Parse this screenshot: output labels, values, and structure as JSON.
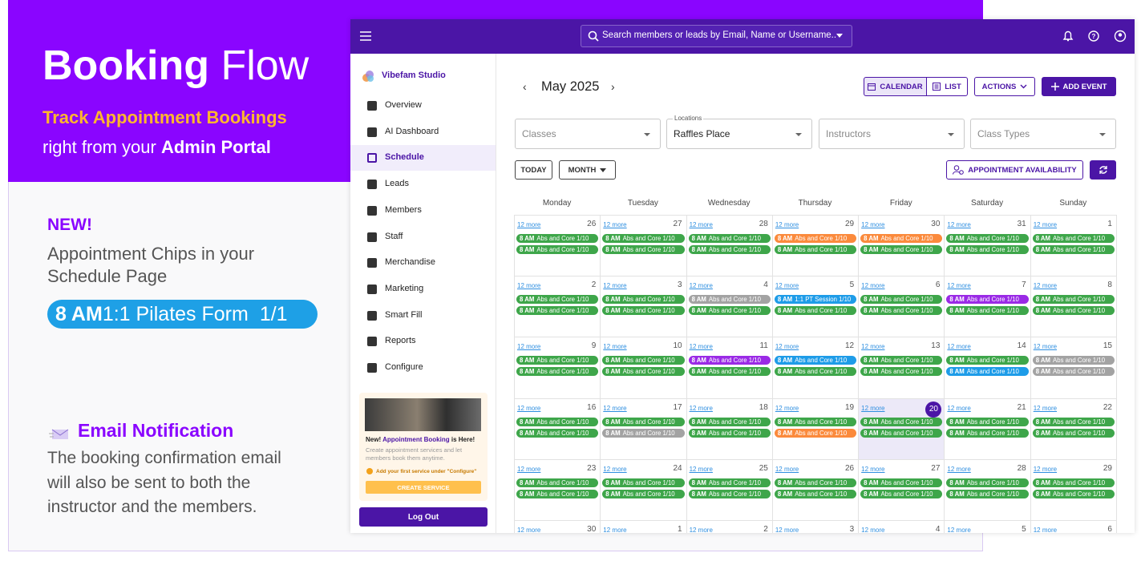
{
  "promo": {
    "title_bold": "Booking",
    "title_rest": "Flow",
    "highlight": "Track Appointment Bookings",
    "line2_pre": "right from your",
    "line2_bold": "Admin Portal",
    "new_badge": "NEW!",
    "new_text": "Appointment Chips in your Schedule Page",
    "sample_chip": {
      "time": "8 AM",
      "label": "1:1 Pilates Form",
      "count": "1/1"
    },
    "email_title": "Email Notification",
    "email_text": "The booking confirmation email will also be sent to both the instructor and the members."
  },
  "app": {
    "search_placeholder": "Search members or leads by Email, Name or Username..",
    "studio": "Vibefam Studio",
    "nav": [
      "Overview",
      "AI Dashboard",
      "Schedule",
      "Leads",
      "Members",
      "Staff",
      "Merchandise",
      "Marketing",
      "Smart Fill",
      "Reports",
      "Configure"
    ],
    "active_nav": 2,
    "card": {
      "heading_pre": "New!",
      "heading_link": "Appointment Booking",
      "heading_post": "is Here!",
      "text": "Create appointment services and let members book them anytime.",
      "hint": "Add your first service under \"Configure\"",
      "button": "CREATE SERVICE"
    },
    "logout": "Log Out"
  },
  "schedule": {
    "month": "May 2025",
    "views": [
      "CALENDAR",
      "LIST"
    ],
    "active_view": 0,
    "actions": "ACTIONS",
    "add_event": "ADD EVENT",
    "filters": [
      {
        "placeholder": "Classes"
      },
      {
        "label": "Locations",
        "value": "Raffles Place"
      },
      {
        "placeholder": "Instructors"
      },
      {
        "placeholder": "Class Types"
      }
    ],
    "today": "TODAY",
    "view": "MONTH",
    "availability": "APPOINTMENT AVAILABILITY",
    "weekdays": [
      "Monday",
      "Tuesday",
      "Wednesday",
      "Thursday",
      "Friday",
      "Saturday",
      "Sunday"
    ],
    "weeks": [
      [
        {
          "date": 26,
          "more": "12 more",
          "chips": [
            {
              "time": "8 AM",
              "label": "Abs and Core 1/10",
              "color": "green"
            },
            {
              "time": "8 AM",
              "label": "Abs and Core 1/10",
              "color": "green"
            }
          ]
        },
        {
          "date": 27,
          "more": "12 more",
          "chips": [
            {
              "time": "8 AM",
              "label": "Abs and Core 1/10",
              "color": "green"
            },
            {
              "time": "8 AM",
              "label": "Abs and Core 1/10",
              "color": "green"
            }
          ]
        },
        {
          "date": 28,
          "more": "12 more",
          "chips": [
            {
              "time": "8 AM",
              "label": "Abs and Core 1/10",
              "color": "green"
            },
            {
              "time": "8 AM",
              "label": "Abs and Core 1/10",
              "color": "green"
            }
          ]
        },
        {
          "date": 29,
          "more": "12 more",
          "chips": [
            {
              "time": "8 AM",
              "label": "Abs and Core 1/10",
              "color": "orange"
            },
            {
              "time": "8 AM",
              "label": "Abs and Core 1/10",
              "color": "green"
            }
          ]
        },
        {
          "date": 30,
          "more": "12 more",
          "chips": [
            {
              "time": "8 AM",
              "label": "Abs and Core 1/10",
              "color": "orange"
            },
            {
              "time": "8 AM",
              "label": "Abs and Core 1/10",
              "color": "green"
            }
          ]
        },
        {
          "date": 31,
          "more": "12 more",
          "chips": [
            {
              "time": "8 AM",
              "label": "Abs and Core 1/10",
              "color": "green"
            },
            {
              "time": "8 AM",
              "label": "Abs and Core 1/10",
              "color": "green"
            }
          ]
        },
        {
          "date": 1,
          "more": "12 more",
          "chips": [
            {
              "time": "8 AM",
              "label": "Abs and Core 1/10",
              "color": "green"
            },
            {
              "time": "8 AM",
              "label": "Abs and Core 1/10",
              "color": "green"
            }
          ]
        }
      ],
      [
        {
          "date": 2,
          "more": "12 more",
          "chips": [
            {
              "time": "8 AM",
              "label": "Abs and Core 1/10",
              "color": "green"
            },
            {
              "time": "8 AM",
              "label": "Abs and Core 1/10",
              "color": "green"
            }
          ]
        },
        {
          "date": 3,
          "more": "12 more",
          "chips": [
            {
              "time": "8 AM",
              "label": "Abs and Core 1/10",
              "color": "green"
            },
            {
              "time": "8 AM",
              "label": "Abs and Core 1/10",
              "color": "green"
            }
          ]
        },
        {
          "date": 4,
          "more": "12 more",
          "chips": [
            {
              "time": "8 AM",
              "label": "Abs and Core 1/10",
              "color": "grey"
            },
            {
              "time": "8 AM",
              "label": "Abs and Core 1/10",
              "color": "green"
            }
          ]
        },
        {
          "date": 5,
          "more": "12 more",
          "chips": [
            {
              "time": "8 AM",
              "label": "1:1 PT Session 1/10",
              "color": "blue"
            },
            {
              "time": "8 AM",
              "label": "Abs and Core 1/10",
              "color": "green"
            }
          ]
        },
        {
          "date": 6,
          "more": "12 more",
          "chips": [
            {
              "time": "8 AM",
              "label": "Abs and Core 1/10",
              "color": "green"
            },
            {
              "time": "8 AM",
              "label": "Abs and Core 1/10",
              "color": "green"
            }
          ]
        },
        {
          "date": 7,
          "more": "12 more",
          "chips": [
            {
              "time": "8 AM",
              "label": "Abs and Core 1/10",
              "color": "purple"
            },
            {
              "time": "8 AM",
              "label": "Abs and Core 1/10",
              "color": "green"
            }
          ]
        },
        {
          "date": 8,
          "more": "12 more",
          "chips": [
            {
              "time": "8 AM",
              "label": "Abs and Core 1/10",
              "color": "green"
            },
            {
              "time": "8 AM",
              "label": "Abs and Core 1/10",
              "color": "green"
            }
          ]
        }
      ],
      [
        {
          "date": 9,
          "more": "12 more",
          "chips": [
            {
              "time": "8 AM",
              "label": "Abs and Core 1/10",
              "color": "green"
            },
            {
              "time": "8 AM",
              "label": "Abs and Core 1/10",
              "color": "green"
            }
          ]
        },
        {
          "date": 10,
          "more": "12 more",
          "chips": [
            {
              "time": "8 AM",
              "label": "Abs and Core 1/10",
              "color": "green"
            },
            {
              "time": "8 AM",
              "label": "Abs and Core 1/10",
              "color": "green"
            }
          ]
        },
        {
          "date": 11,
          "more": "12 more",
          "chips": [
            {
              "time": "8 AM",
              "label": "Abs and Core 1/10",
              "color": "purple"
            },
            {
              "time": "8 AM",
              "label": "Abs and Core 1/10",
              "color": "green"
            }
          ]
        },
        {
          "date": 12,
          "more": "12 more",
          "chips": [
            {
              "time": "8 AM",
              "label": "Abs and Core 1/10",
              "color": "blue"
            },
            {
              "time": "8 AM",
              "label": "Abs and Core 1/10",
              "color": "green"
            }
          ]
        },
        {
          "date": 13,
          "more": "12 more",
          "chips": [
            {
              "time": "8 AM",
              "label": "Abs and Core 1/10",
              "color": "green"
            },
            {
              "time": "8 AM",
              "label": "Abs and Core 1/10",
              "color": "green"
            }
          ]
        },
        {
          "date": 14,
          "more": "12 more",
          "chips": [
            {
              "time": "8 AM",
              "label": "Abs and Core 1/10",
              "color": "green"
            },
            {
              "time": "8 AM",
              "label": "Abs and Core 1/10",
              "color": "blue"
            }
          ]
        },
        {
          "date": 15,
          "more": "12 more",
          "chips": [
            {
              "time": "8 AM",
              "label": "Abs and Core 1/10",
              "color": "grey"
            },
            {
              "time": "8 AM",
              "label": "Abs and Core 1/10",
              "color": "grey"
            }
          ]
        }
      ],
      [
        {
          "date": 16,
          "more": "12 more",
          "chips": [
            {
              "time": "8 AM",
              "label": "Abs and Core 1/10",
              "color": "green"
            },
            {
              "time": "8 AM",
              "label": "Abs and Core 1/10",
              "color": "green"
            }
          ]
        },
        {
          "date": 17,
          "more": "12 more",
          "chips": [
            {
              "time": "8 AM",
              "label": "Abs and Core 1/10",
              "color": "green"
            },
            {
              "time": "8 AM",
              "label": "Abs and Core 1/10",
              "color": "grey"
            }
          ]
        },
        {
          "date": 18,
          "more": "12 more",
          "chips": [
            {
              "time": "8 AM",
              "label": "Abs and Core 1/10",
              "color": "green"
            },
            {
              "time": "8 AM",
              "label": "Abs and Core 1/10",
              "color": "green"
            }
          ]
        },
        {
          "date": 19,
          "more": "12 more",
          "chips": [
            {
              "time": "8 AM",
              "label": "Abs and Core 1/10",
              "color": "green"
            },
            {
              "time": "8 AM",
              "label": "Abs and Core 1/10",
              "color": "orange"
            }
          ]
        },
        {
          "date": 20,
          "more": "12 more",
          "today": true,
          "chips": [
            {
              "time": "8 AM",
              "label": "Abs and Core 1/10",
              "color": "green"
            },
            {
              "time": "8 AM",
              "label": "Abs and Core 1/10",
              "color": "green"
            }
          ]
        },
        {
          "date": 21,
          "more": "12 more",
          "chips": [
            {
              "time": "8 AM",
              "label": "Abs and Core 1/10",
              "color": "green"
            },
            {
              "time": "8 AM",
              "label": "Abs and Core 1/10",
              "color": "green"
            }
          ]
        },
        {
          "date": 22,
          "more": "12 more",
          "chips": [
            {
              "time": "8 AM",
              "label": "Abs and Core 1/10",
              "color": "green"
            },
            {
              "time": "8 AM",
              "label": "Abs and Core 1/10",
              "color": "green"
            }
          ]
        }
      ],
      [
        {
          "date": 23,
          "more": "12 more",
          "chips": [
            {
              "time": "8 AM",
              "label": "Abs and Core 1/10",
              "color": "green"
            },
            {
              "time": "8 AM",
              "label": "Abs and Core 1/10",
              "color": "green"
            }
          ]
        },
        {
          "date": 24,
          "more": "12 more",
          "chips": [
            {
              "time": "8 AM",
              "label": "Abs and Core 1/10",
              "color": "green"
            },
            {
              "time": "8 AM",
              "label": "Abs and Core 1/10",
              "color": "green"
            }
          ]
        },
        {
          "date": 25,
          "more": "12 more",
          "chips": [
            {
              "time": "8 AM",
              "label": "Abs and Core 1/10",
              "color": "green"
            },
            {
              "time": "8 AM",
              "label": "Abs and Core 1/10",
              "color": "green"
            }
          ]
        },
        {
          "date": 26,
          "more": "12 more",
          "chips": [
            {
              "time": "8 AM",
              "label": "Abs and Core 1/10",
              "color": "green"
            },
            {
              "time": "8 AM",
              "label": "Abs and Core 1/10",
              "color": "green"
            }
          ]
        },
        {
          "date": 27,
          "more": "12 more",
          "chips": [
            {
              "time": "8 AM",
              "label": "Abs and Core 1/10",
              "color": "green"
            },
            {
              "time": "8 AM",
              "label": "Abs and Core 1/10",
              "color": "green"
            }
          ]
        },
        {
          "date": 28,
          "more": "12 more",
          "chips": [
            {
              "time": "8 AM",
              "label": "Abs and Core 1/10",
              "color": "green"
            },
            {
              "time": "8 AM",
              "label": "Abs and Core 1/10",
              "color": "green"
            }
          ]
        },
        {
          "date": 29,
          "more": "12 more",
          "chips": [
            {
              "time": "8 AM",
              "label": "Abs and Core 1/10",
              "color": "green"
            },
            {
              "time": "8 AM",
              "label": "Abs and Core 1/10",
              "color": "green"
            }
          ]
        }
      ],
      [
        {
          "date": 30,
          "more": "12 more"
        },
        {
          "date": 1,
          "more": "12 more"
        },
        {
          "date": 2,
          "more": "12 more"
        },
        {
          "date": 3,
          "more": "12 more"
        },
        {
          "date": 4,
          "more": "12 more"
        },
        {
          "date": 5,
          "more": "12 more"
        },
        {
          "date": 6,
          "more": "12 more"
        }
      ]
    ]
  }
}
